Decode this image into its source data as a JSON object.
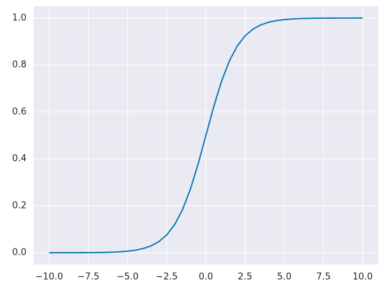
{
  "chart_data": {
    "type": "line",
    "x": [
      -10,
      -9.5,
      -9,
      -8.5,
      -8,
      -7.5,
      -7,
      -6.5,
      -6,
      -5.5,
      -5,
      -4.5,
      -4,
      -3.5,
      -3,
      -2.5,
      -2,
      -1.5,
      -1,
      -0.5,
      0,
      0.5,
      1,
      1.5,
      2,
      2.5,
      3,
      3.5,
      4,
      4.5,
      5,
      5.5,
      6,
      6.5,
      7,
      7.5,
      8,
      8.5,
      9,
      9.5,
      10
    ],
    "series": [
      {
        "color": "#0173b2",
        "values": [
          0.0,
          0.0001,
          0.0001,
          0.0002,
          0.0003,
          0.0006,
          0.0009,
          0.0015,
          0.0025,
          0.0041,
          0.0067,
          0.011,
          0.018,
          0.0293,
          0.0474,
          0.0759,
          0.1192,
          0.1824,
          0.2689,
          0.3775,
          0.5,
          0.6225,
          0.7311,
          0.8176,
          0.8808,
          0.9241,
          0.9526,
          0.9707,
          0.982,
          0.989,
          0.9933,
          0.9959,
          0.9975,
          0.9985,
          0.9991,
          0.9994,
          0.9997,
          0.9998,
          0.9999,
          0.9999,
          1.0
        ]
      }
    ],
    "xlim": [
      -11,
      11
    ],
    "xticks": [
      {
        "value": -10,
        "label": "−10.0"
      },
      {
        "value": -7.5,
        "label": "−7.5"
      },
      {
        "value": -5,
        "label": "−5.0"
      },
      {
        "value": -2.5,
        "label": "−2.5"
      },
      {
        "value": 0,
        "label": "0.0"
      },
      2.5,
      {
        "value": 5,
        "label": "5.0"
      },
      7.5,
      {
        "value": 10,
        "label": "10.0"
      }
    ],
    "ylim": [
      -0.05,
      1.05
    ],
    "yticks": [
      {
        "value": 0,
        "label": "0.0"
      },
      0.2,
      0.4,
      0.6,
      0.8,
      {
        "value": 1,
        "label": "1.0"
      }
    ],
    "grid": true,
    "background": "#eaeaf2"
  }
}
